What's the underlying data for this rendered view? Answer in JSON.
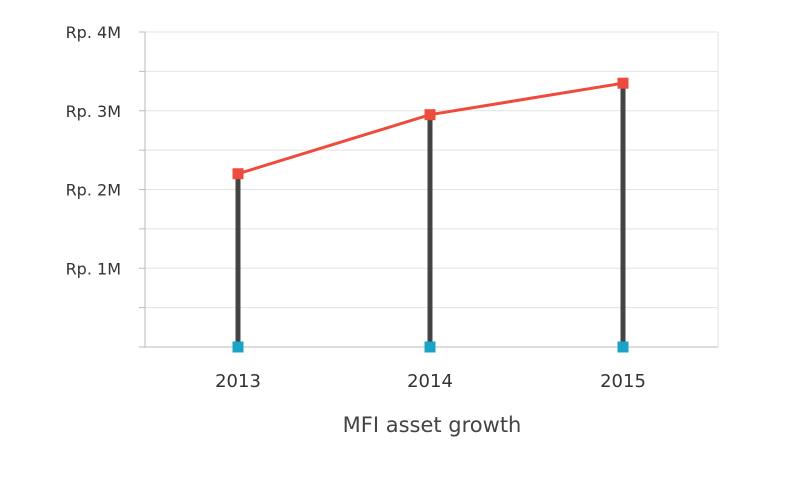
{
  "chart_data": {
    "type": "line",
    "categories": [
      "2013",
      "2014",
      "2015"
    ],
    "series": [
      {
        "values": [
          2.2,
          2.95,
          3.35
        ],
        "color": "#ef4b3c"
      }
    ],
    "baseline_markers_color": "#1aa3c8",
    "stem_color": "#444444",
    "xlabel": "MFI asset growth",
    "ylabel": "",
    "ylim": [
      0,
      4
    ],
    "yticks": [
      {
        "value": 4,
        "label": "Rp. 4M"
      },
      {
        "value": 3,
        "label": "Rp. 3M"
      },
      {
        "value": 2,
        "label": "Rp. 2M"
      },
      {
        "value": 1,
        "label": "Rp. 1M"
      }
    ],
    "grid": true,
    "grid_step": 0.5,
    "legend": "none"
  }
}
